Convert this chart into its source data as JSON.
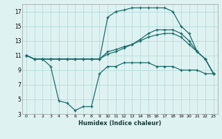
{
  "xlabel": "Humidex (Indice chaleur)",
  "bg_color": "#dff2f2",
  "grid_color": "#b8dede",
  "line_color": "#1a6b6b",
  "xlim": [
    -0.5,
    23.5
  ],
  "ylim": [
    3,
    18
  ],
  "xticks": [
    0,
    1,
    2,
    3,
    4,
    5,
    6,
    7,
    8,
    9,
    10,
    11,
    12,
    13,
    14,
    15,
    16,
    17,
    18,
    19,
    20,
    21,
    22,
    23
  ],
  "yticks": [
    3,
    5,
    7,
    9,
    11,
    13,
    15,
    17
  ],
  "s_peak_x": [
    0,
    1,
    2,
    3,
    4,
    5,
    6,
    7,
    8,
    9,
    10,
    11,
    12,
    13,
    14,
    15,
    16,
    17,
    18,
    19,
    20,
    21,
    22,
    23
  ],
  "s_peak_y": [
    11.0,
    10.5,
    10.5,
    10.5,
    10.5,
    10.5,
    10.5,
    10.5,
    10.5,
    10.5,
    16.2,
    17.0,
    17.2,
    17.5,
    17.5,
    17.5,
    17.5,
    17.5,
    17.0,
    15.0,
    14.0,
    11.5,
    10.5,
    8.5
  ],
  "s_mid1_x": [
    0,
    1,
    2,
    3,
    4,
    5,
    6,
    7,
    8,
    9,
    10,
    11,
    12,
    13,
    14,
    15,
    16,
    17,
    18,
    19,
    20,
    21,
    22,
    23
  ],
  "s_mid1_y": [
    11.0,
    10.5,
    10.5,
    10.5,
    10.5,
    10.5,
    10.5,
    10.5,
    10.5,
    10.5,
    11.5,
    11.8,
    12.2,
    12.5,
    13.0,
    13.5,
    13.8,
    14.0,
    14.0,
    13.5,
    12.5,
    11.5,
    10.5,
    8.5
  ],
  "s_mid2_x": [
    0,
    1,
    2,
    3,
    4,
    5,
    6,
    7,
    8,
    9,
    10,
    11,
    12,
    13,
    14,
    15,
    16,
    17,
    18,
    19,
    20,
    21,
    22,
    23
  ],
  "s_mid2_y": [
    11.0,
    10.5,
    10.5,
    10.5,
    10.5,
    10.5,
    10.5,
    10.5,
    10.5,
    10.5,
    11.2,
    11.5,
    12.0,
    12.5,
    13.2,
    14.0,
    14.5,
    14.5,
    14.5,
    14.0,
    13.0,
    11.5,
    10.5,
    8.5
  ],
  "s_low_x": [
    0,
    1,
    2,
    3,
    4,
    5,
    6,
    7,
    8,
    9,
    10,
    11,
    12,
    13,
    14,
    15,
    16,
    17,
    18,
    19,
    20,
    21,
    22,
    23
  ],
  "s_low_y": [
    11.0,
    10.5,
    10.5,
    9.5,
    4.8,
    4.5,
    3.5,
    4.0,
    4.0,
    8.5,
    9.5,
    9.5,
    10.0,
    10.0,
    10.0,
    10.0,
    9.5,
    9.5,
    9.5,
    9.0,
    9.0,
    9.0,
    8.5,
    8.5
  ]
}
